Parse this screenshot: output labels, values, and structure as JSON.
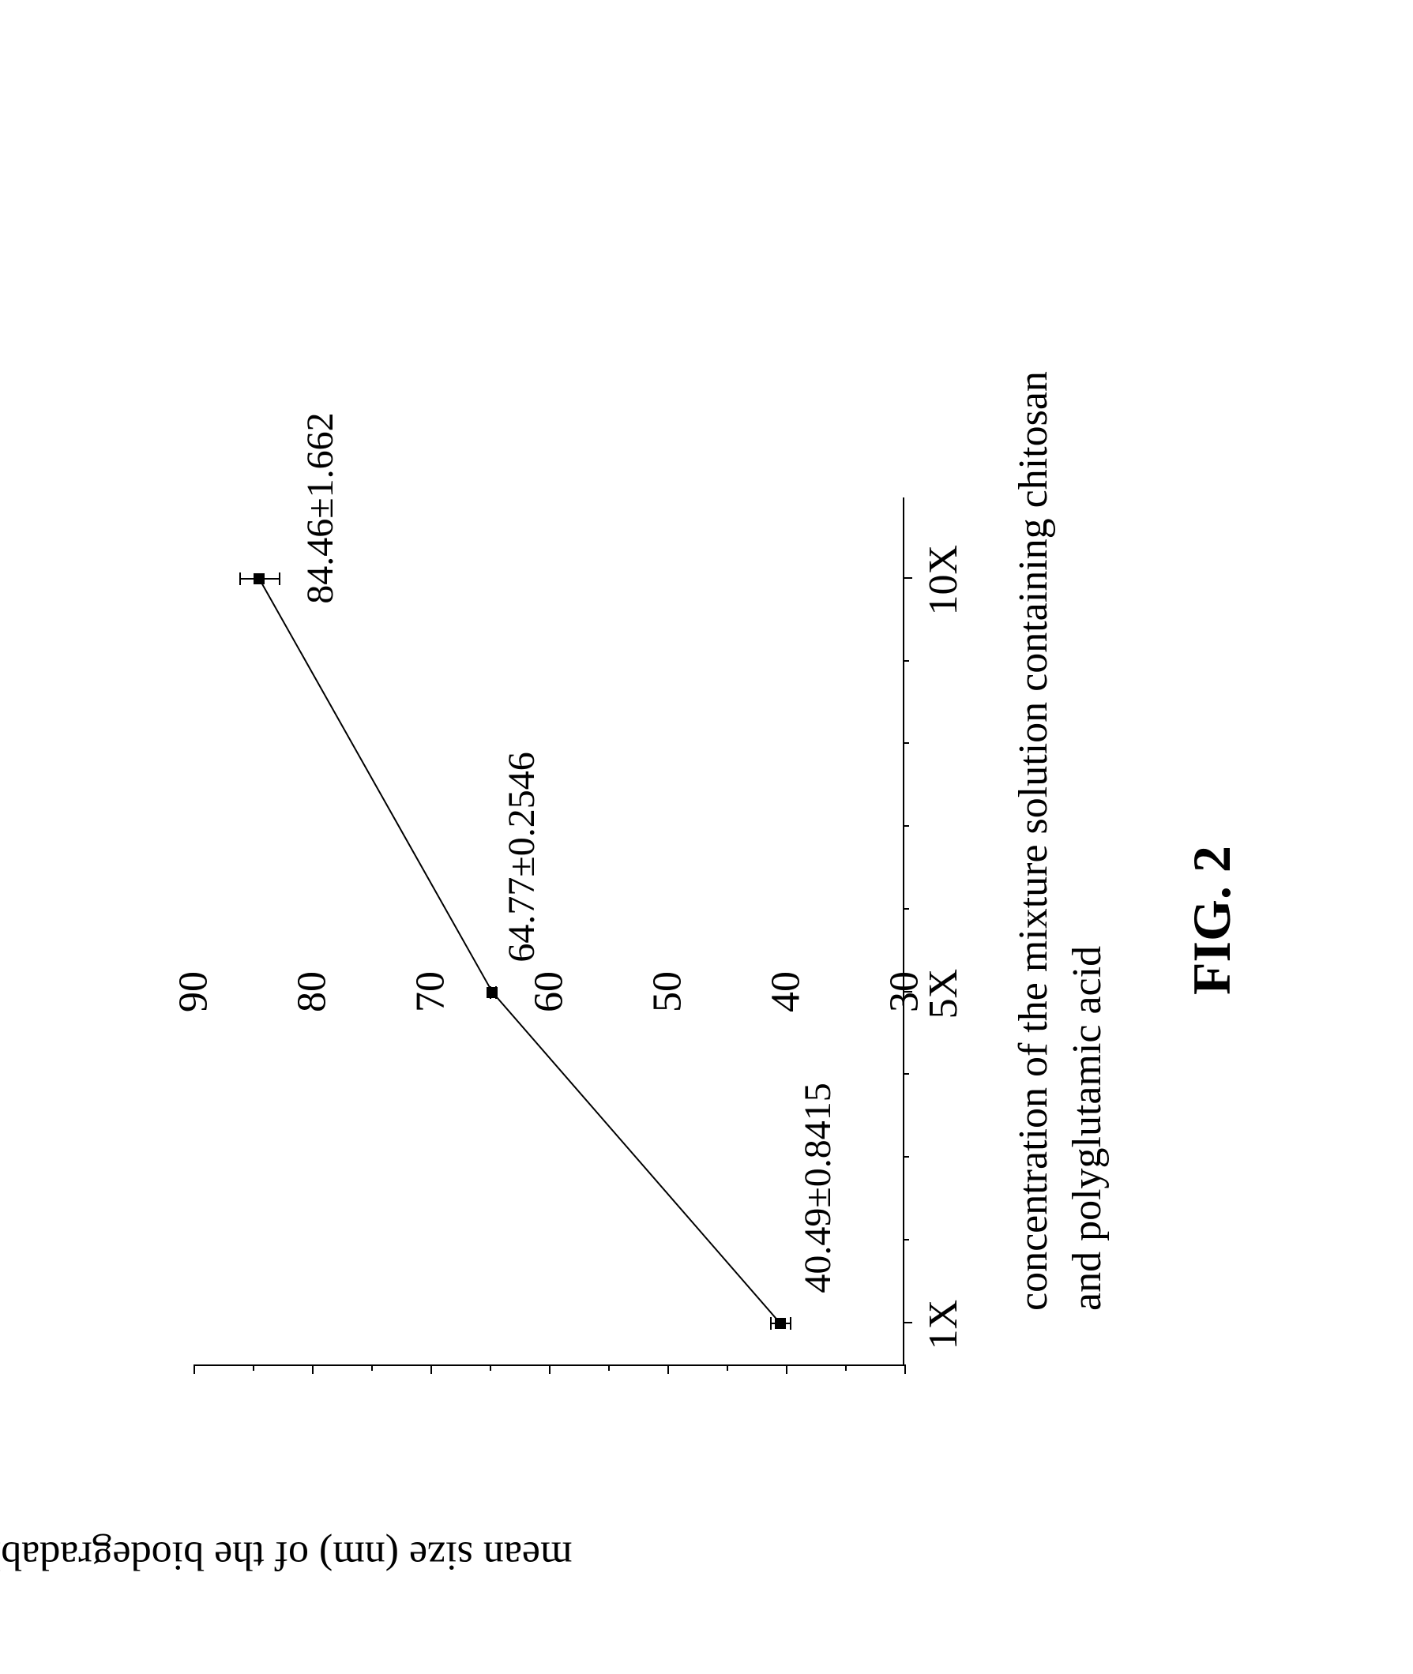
{
  "chart": {
    "type": "line-scatter",
    "ylabel": "mean size (nm) of the biodegradable carrier",
    "xlabel": "concentration of the mixture solution containing chitosan and polyglutamic acid",
    "caption": "FIG. 2",
    "ylim": [
      30,
      90
    ],
    "ytick_step": 10,
    "yticks": [
      30,
      40,
      50,
      60,
      70,
      80,
      90
    ],
    "xticks": [
      "1X",
      "5X",
      "10X"
    ],
    "xtick_positions": [
      1,
      5,
      10
    ],
    "xlim": [
      0.5,
      11
    ],
    "background_color": "#ffffff",
    "axis_color": "#000000",
    "line_color": "#000000",
    "marker_color": "#000000",
    "marker_style": "square",
    "marker_size": 14,
    "line_width": 2,
    "label_fontsize": 52,
    "tick_fontsize": 52,
    "point_label_fontsize": 48,
    "caption_fontsize": 68,
    "data_points": [
      {
        "x": 1,
        "y": 40.49,
        "err": 0.8415,
        "label": "40.49±0.8415"
      },
      {
        "x": 5,
        "y": 64.77,
        "err": 0.2546,
        "label": "64.77±0.2546"
      },
      {
        "x": 10,
        "y": 84.46,
        "err": 1.662,
        "label": "84.46±1.662"
      }
    ]
  }
}
